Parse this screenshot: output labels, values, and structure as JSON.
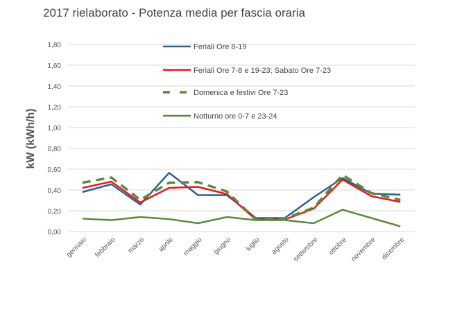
{
  "chart_data": {
    "type": "line",
    "title": "2017 rielaborato - Potenza media per fascia oraria",
    "xlabel": "",
    "ylabel": "kW (kWh/h)",
    "ylim": [
      0,
      1.8
    ],
    "yticks": [
      "0,00",
      "0,20",
      "0,40",
      "0,60",
      "0,80",
      "1,00",
      "1,20",
      "1,40",
      "1,60",
      "1,80"
    ],
    "categories": [
      "gennaio",
      "febbraio",
      "marzo",
      "aprile",
      "maggio",
      "giugno",
      "luglio",
      "agosto",
      "settembre",
      "ottobre",
      "novembre",
      "dicembre"
    ],
    "grid": true,
    "legend": "top-center",
    "series": [
      {
        "name": "Feriali  Ore 8-19",
        "color": "#2e5f8f",
        "dash": false,
        "values": [
          0.38,
          0.455,
          0.26,
          0.565,
          0.35,
          0.35,
          0.13,
          0.13,
          0.33,
          0.515,
          0.365,
          0.355
        ]
      },
      {
        "name": "Feriali Ore 7-8 e 19-23; Sabato Ore 7-23",
        "color": "#e31a1c",
        "dash": false,
        "values": [
          0.42,
          0.48,
          0.28,
          0.42,
          0.43,
          0.36,
          0.115,
          0.115,
          0.22,
          0.5,
          0.34,
          0.285
        ]
      },
      {
        "name": "Domenica e festivi Ore 7-23",
        "color": "#5b8a3c",
        "dash": true,
        "values": [
          0.47,
          0.52,
          0.305,
          0.47,
          0.475,
          0.385,
          0.115,
          0.125,
          0.23,
          0.545,
          0.37,
          0.305
        ]
      },
      {
        "name": "Notturno ore 0-7 e 23-24",
        "color": "#5b8a3c",
        "dash": false,
        "values": [
          0.125,
          0.11,
          0.14,
          0.12,
          0.08,
          0.14,
          0.11,
          0.11,
          0.08,
          0.21,
          0.13,
          0.05
        ]
      }
    ]
  }
}
